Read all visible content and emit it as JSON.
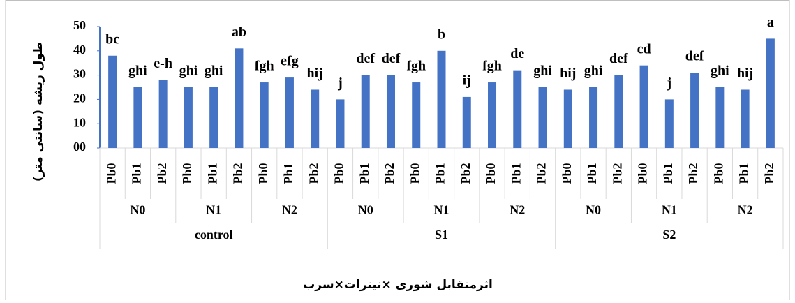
{
  "chart_data": {
    "type": "bar",
    "y_axis_label": "طول ریشه (سانتی متر)",
    "x_axis_label": "اثرمتقابل شوری ×نیترات×سرب",
    "categories": [
      "Pb0",
      "Pb1",
      "Pb2",
      "Pb0",
      "Pb1",
      "Pb2",
      "Pb0",
      "Pb1",
      "Pb2",
      "Pb0",
      "Pb1",
      "Pb2",
      "Pb0",
      "Pb1",
      "Pb2",
      "Pb0",
      "Pb1",
      "Pb2",
      "Pb0",
      "Pb1",
      "Pb2",
      "Pb0",
      "Pb1",
      "Pb2",
      "Pb0",
      "Pb1",
      "Pb2"
    ],
    "nitrate_groups": [
      "N0",
      "N1",
      "N2",
      "N0",
      "N1",
      "N2",
      "N0",
      "N1",
      "N2"
    ],
    "salinity_groups": [
      "control",
      "S1",
      "S2"
    ],
    "values": [
      38,
      25,
      28,
      25,
      25,
      41,
      27,
      29,
      24,
      20,
      30,
      30,
      27,
      40,
      21,
      27,
      32,
      25,
      24,
      25,
      30,
      34,
      20,
      31,
      25,
      24,
      45
    ],
    "annotations": [
      "bc",
      "ghi",
      "e-h",
      "ghi",
      "ghi",
      "ab",
      "fgh",
      "efg",
      "hij",
      "j",
      "def",
      "def",
      "fgh",
      "b",
      "ij",
      "fgh",
      "de",
      "ghi",
      "hij",
      "ghi",
      "def",
      "cd",
      "j",
      "def",
      "ghi",
      "hij",
      "a"
    ],
    "color": "#4472c4",
    "ylim": [
      0,
      50
    ],
    "yticks": [
      {
        "value": 0,
        "label": "00"
      },
      10,
      20,
      30,
      40,
      50
    ]
  }
}
